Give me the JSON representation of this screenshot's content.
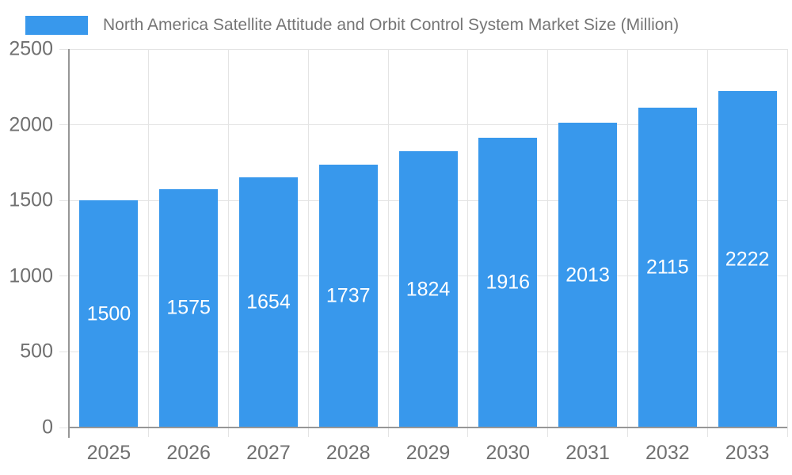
{
  "chart_data": {
    "type": "bar",
    "title": "North America Satellite Attitude and Orbit Control System Market Size (Million)",
    "categories": [
      "2025",
      "2026",
      "2027",
      "2028",
      "2029",
      "2030",
      "2031",
      "2032",
      "2033"
    ],
    "values": [
      1500,
      1575,
      1654,
      1737,
      1824,
      1916,
      2013,
      2115,
      2222
    ],
    "xlabel": "",
    "ylabel": "",
    "ylim": [
      0,
      2500
    ],
    "yticks": [
      0,
      500,
      1000,
      1500,
      2000,
      2500
    ],
    "grid": true,
    "legend_position": "top-left",
    "bar_color": "#3898EC",
    "value_label_color": "#ffffff"
  },
  "style": {
    "gridline_color": "#e4e4e4",
    "axis_line_color": "#969696",
    "tick_label_color": "#707070",
    "title_color": "#757575",
    "background_color": "#ffffff"
  }
}
